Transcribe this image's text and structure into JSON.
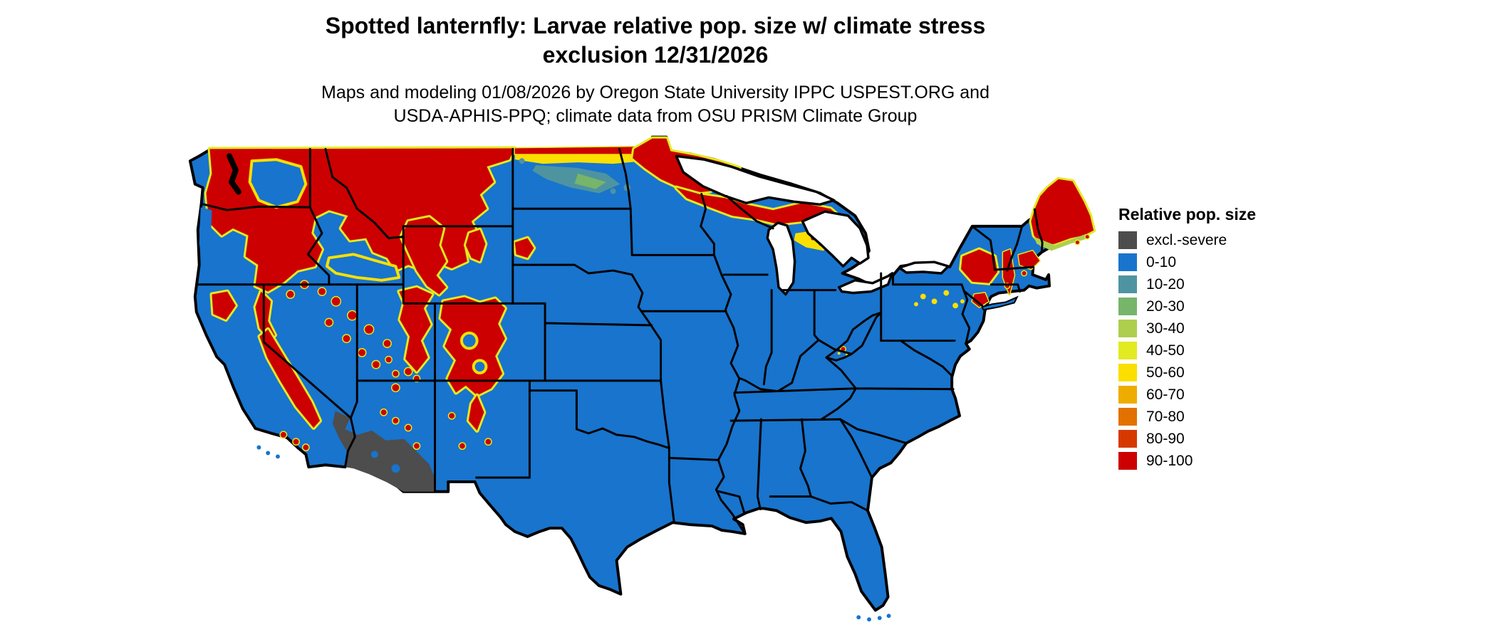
{
  "header": {
    "title_line1": "Spotted lanternfly: Larvae relative pop. size w/ climate stress",
    "title_line2": "exclusion 12/31/2026",
    "subtitle_line1": "Maps and modeling 01/08/2026 by Oregon State University IPPC USPEST.ORG and",
    "subtitle_line2": "USDA-APHIS-PPQ; climate data from OSU PRISM Climate Group"
  },
  "legend": {
    "title": "Relative pop. size",
    "items": [
      {
        "label": "excl.-severe",
        "color": "#4D4D4D"
      },
      {
        "label": "0-10",
        "color": "#1874CD"
      },
      {
        "label": "10-20",
        "color": "#4E94A0"
      },
      {
        "label": "20-30",
        "color": "#76B56A"
      },
      {
        "label": "30-40",
        "color": "#AECE4E"
      },
      {
        "label": "40-50",
        "color": "#E2EA20"
      },
      {
        "label": "50-60",
        "color": "#FADF00"
      },
      {
        "label": "60-70",
        "color": "#EFAC00"
      },
      {
        "label": "70-80",
        "color": "#E27100"
      },
      {
        "label": "80-90",
        "color": "#D63900"
      },
      {
        "label": "90-100",
        "color": "#CC0000"
      }
    ]
  },
  "map": {
    "description": "Contiguous United States raster map of relative population size",
    "palette": {
      "cex": "#4D4D4D",
      "c0": "#1874CD",
      "c10": "#4E94A0",
      "c20": "#76B56A",
      "c30": "#AECE4E",
      "c40": "#E2EA20",
      "c50": "#FADF00",
      "c60": "#EFAC00",
      "c70": "#E27100",
      "c80": "#D63900",
      "c90": "#CC0000",
      "border": "#000000",
      "water": "#FFFFFF"
    }
  }
}
